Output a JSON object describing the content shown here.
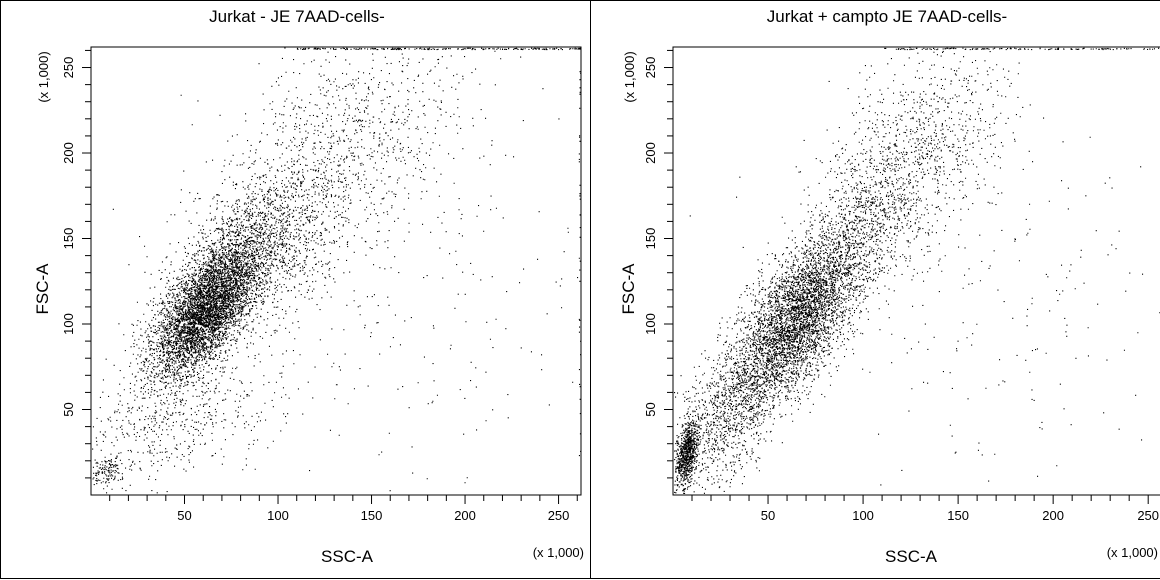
{
  "chart_data": [
    {
      "type": "scatter",
      "title": "Jurkat - JE 7AAD-cells-",
      "xlabel": "SSC-A",
      "ylabel": "FSC-A",
      "x_multiplier": "(x 1,000)",
      "y_multiplier": "(x 1,000)",
      "xlim": [
        0,
        262
      ],
      "ylim": [
        0,
        262
      ],
      "x_ticks": [
        50,
        100,
        150,
        200,
        250
      ],
      "y_ticks": [
        50,
        100,
        150,
        200,
        250
      ],
      "grid": false,
      "point_color": "#000000",
      "clusters": [
        {
          "n": 5200,
          "cx": 62,
          "cy": 110,
          "sx": 15,
          "sy": 21,
          "rho": 0.65
        },
        {
          "n": 1700,
          "cx": 95,
          "cy": 150,
          "sx": 24,
          "sy": 28,
          "rho": 0.5
        },
        {
          "n": 650,
          "cx": 140,
          "cy": 215,
          "sx": 32,
          "sy": 26,
          "rho": 0.2
        },
        {
          "n": 500,
          "cx": 45,
          "cy": 42,
          "sx": 30,
          "sy": 18,
          "rho": 0.4
        },
        {
          "n": 130,
          "cx": 8,
          "cy": 14,
          "sx": 5,
          "sy": 5,
          "rho": 0.3
        },
        {
          "n": 300,
          "cx": 165,
          "cy": 120,
          "sx": 60,
          "sy": 70,
          "rho": 0.1
        }
      ],
      "edge_top": {
        "n": 220,
        "x_from": 110,
        "x_to": 262
      },
      "edge_right": {
        "n": 40,
        "y_from": 20,
        "y_to": 262
      }
    },
    {
      "type": "scatter",
      "title": "Jurkat + campto  JE 7AAD-cells-",
      "xlabel": "SSC-A",
      "ylabel": "FSC-A",
      "x_multiplier": "(x 1,000)",
      "y_multiplier": "(x 1,000)",
      "xlim": [
        0,
        262
      ],
      "ylim": [
        0,
        262
      ],
      "x_ticks": [
        50,
        100,
        150,
        200,
        250
      ],
      "y_ticks": [
        50,
        100,
        150,
        200,
        250
      ],
      "grid": false,
      "point_color": "#000000",
      "clusters": [
        {
          "n": 4000,
          "cx": 66,
          "cy": 104,
          "sx": 16,
          "sy": 24,
          "rho": 0.62
        },
        {
          "n": 1300,
          "cx": 105,
          "cy": 165,
          "sx": 22,
          "sy": 30,
          "rho": 0.55
        },
        {
          "n": 500,
          "cx": 135,
          "cy": 215,
          "sx": 24,
          "sy": 24,
          "rho": 0.3
        },
        {
          "n": 1200,
          "cx": 30,
          "cy": 50,
          "sx": 16,
          "sy": 25,
          "rho": 0.6
        },
        {
          "n": 750,
          "cx": 7,
          "cy": 24,
          "sx": 3,
          "sy": 9,
          "rho": 0.5
        },
        {
          "n": 250,
          "cx": 170,
          "cy": 120,
          "sx": 55,
          "sy": 65,
          "rho": 0.1
        }
      ],
      "edge_top": {
        "n": 150,
        "x_from": 110,
        "x_to": 262
      },
      "edge_right": {
        "n": 12,
        "y_from": 20,
        "y_to": 262
      }
    }
  ]
}
